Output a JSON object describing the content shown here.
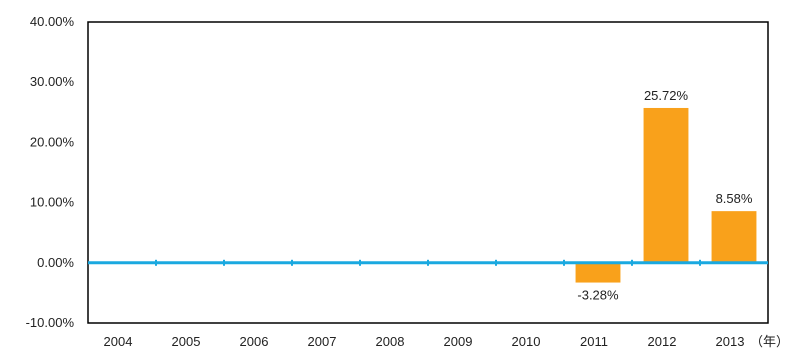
{
  "chart_data": {
    "type": "bar",
    "categories": [
      "2004",
      "2005",
      "2006",
      "2007",
      "2008",
      "2009",
      "2010",
      "2011",
      "2012",
      "2013"
    ],
    "values": [
      null,
      null,
      null,
      null,
      null,
      null,
      null,
      -3.28,
      25.72,
      8.58
    ],
    "data_labels": [
      "",
      "",
      "",
      "",
      "",
      "",
      "",
      "-3.28%",
      "25.72%",
      "8.58%"
    ],
    "yticks": [
      40,
      30,
      20,
      10,
      0,
      -10
    ],
    "ytick_labels": [
      "40.00%",
      "30.00%",
      "20.00%",
      "10.00%",
      "0.00%",
      "-10.00%"
    ],
    "ylim": [
      -10,
      40
    ],
    "x_unit": "（年）",
    "title": "",
    "xlabel": "",
    "ylabel": "",
    "grid": false,
    "colors": {
      "bar": "#f9a11b",
      "zero_line": "#1aa9e0",
      "axis": "#000000"
    }
  }
}
